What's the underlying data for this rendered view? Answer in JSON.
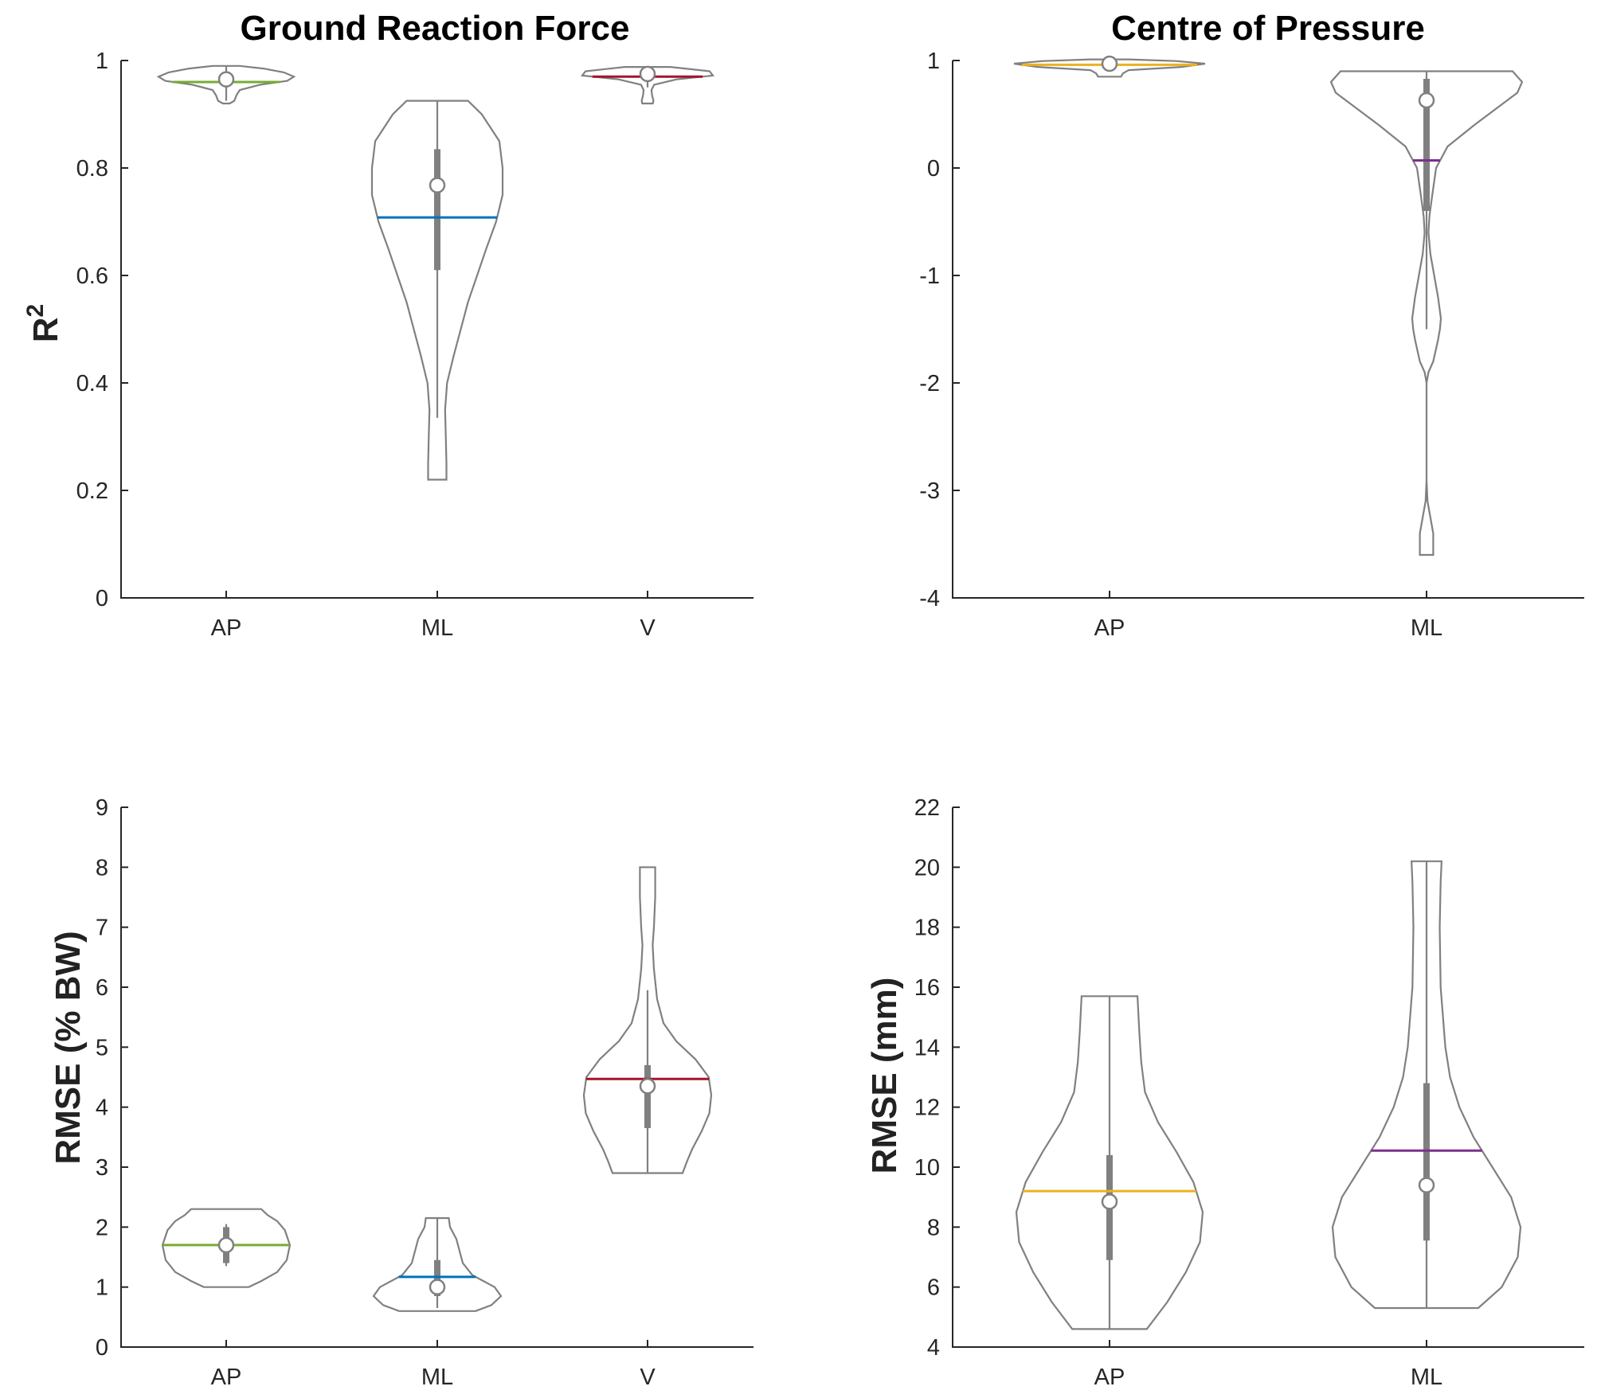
{
  "figure": {
    "colors": {
      "AP_grf": "#77AC30",
      "ML_grf": "#0072BD",
      "V_grf": "#A2142F",
      "AP_cop": "#EDB120",
      "ML_cop": "#7E2F8E",
      "violin_edge": "#808080"
    }
  },
  "chart_data": [
    {
      "id": "grf_r2",
      "type": "violin",
      "title": "Ground Reaction Force",
      "xlabel": "",
      "ylabel": "R",
      "ylabel_superscript": "2",
      "ylim": [
        0,
        1
      ],
      "yticks": [
        0,
        0.2,
        0.4,
        0.6,
        0.8,
        1
      ],
      "ytick_labels": [
        "0",
        "0.2",
        "0.4",
        "0.6",
        "0.8",
        "1"
      ],
      "categories": [
        "AP",
        "ML",
        "V"
      ],
      "series": [
        {
          "name": "AP",
          "color": "#77AC30",
          "mean": 0.96,
          "median": 0.965,
          "q1": 0.955,
          "q3": 0.975,
          "whisker_low": 0.925,
          "whisker_high": 0.99,
          "profile": [
            [
              0.92,
              0.05
            ],
            [
              0.925,
              0.12
            ],
            [
              0.935,
              0.15
            ],
            [
              0.945,
              0.2
            ],
            [
              0.955,
              0.5
            ],
            [
              0.962,
              0.9
            ],
            [
              0.97,
              1.0
            ],
            [
              0.978,
              0.85
            ],
            [
              0.985,
              0.55
            ],
            [
              0.99,
              0.2
            ]
          ]
        },
        {
          "name": "ML",
          "color": "#0072BD",
          "mean": 0.708,
          "median": 0.768,
          "q1": 0.61,
          "q3": 0.835,
          "whisker_low": 0.335,
          "whisker_high": 0.925,
          "profile": [
            [
              0.22,
              0.14
            ],
            [
              0.25,
              0.14
            ],
            [
              0.3,
              0.13
            ],
            [
              0.35,
              0.12
            ],
            [
              0.4,
              0.15
            ],
            [
              0.45,
              0.25
            ],
            [
              0.5,
              0.36
            ],
            [
              0.55,
              0.47
            ],
            [
              0.6,
              0.61
            ],
            [
              0.65,
              0.75
            ],
            [
              0.7,
              0.9
            ],
            [
              0.75,
              1.0
            ],
            [
              0.8,
              1.0
            ],
            [
              0.85,
              0.95
            ],
            [
              0.9,
              0.68
            ],
            [
              0.925,
              0.47
            ]
          ]
        },
        {
          "name": "V",
          "color": "#A2142F",
          "mean": 0.97,
          "median": 0.975,
          "q1": 0.97,
          "q3": 0.98,
          "whisker_low": 0.95,
          "whisker_high": 0.98,
          "profile": [
            [
              0.92,
              0.08
            ],
            [
              0.925,
              0.09
            ],
            [
              0.935,
              0.07
            ],
            [
              0.945,
              0.06
            ],
            [
              0.955,
              0.1
            ],
            [
              0.965,
              0.45
            ],
            [
              0.972,
              1.0
            ],
            [
              0.98,
              0.95
            ],
            [
              0.988,
              0.35
            ]
          ]
        }
      ]
    },
    {
      "id": "cop_r2",
      "type": "violin",
      "title": "Centre of Pressure",
      "xlabel": "",
      "ylabel": "",
      "ylim": [
        -4,
        1
      ],
      "yticks": [
        -4,
        -3,
        -2,
        -1,
        0,
        1
      ],
      "ytick_labels": [
        "-4",
        "-3",
        "-2",
        "-1",
        "0",
        "1"
      ],
      "categories": [
        "AP",
        "ML"
      ],
      "series": [
        {
          "name": "AP",
          "color": "#EDB120",
          "mean": 0.96,
          "median": 0.97,
          "q1": 0.95,
          "q3": 0.985,
          "whisker_low": 0.9,
          "whisker_high": 0.99,
          "profile": [
            [
              0.85,
              0.12
            ],
            [
              0.88,
              0.14
            ],
            [
              0.91,
              0.2
            ],
            [
              0.94,
              0.75
            ],
            [
              0.97,
              1.0
            ],
            [
              0.995,
              0.7
            ],
            [
              1.01,
              0.2
            ]
          ]
        },
        {
          "name": "ML",
          "color": "#7E2F8E",
          "mean": 0.07,
          "median": 0.63,
          "q1": -0.4,
          "q3": 0.83,
          "whisker_low": -1.5,
          "whisker_high": 0.9,
          "profile": [
            [
              -3.6,
              0.07
            ],
            [
              -3.5,
              0.07
            ],
            [
              -3.4,
              0.07
            ],
            [
              -3.3,
              0.05
            ],
            [
              -3.1,
              0.01
            ],
            [
              -2.9,
              0.0
            ],
            [
              -2.5,
              0.0
            ],
            [
              -2.0,
              0.0
            ],
            [
              -1.9,
              0.02
            ],
            [
              -1.8,
              0.07
            ],
            [
              -1.6,
              0.12
            ],
            [
              -1.5,
              0.14
            ],
            [
              -1.4,
              0.15
            ],
            [
              -1.2,
              0.12
            ],
            [
              -1.0,
              0.08
            ],
            [
              -0.8,
              0.04
            ],
            [
              -0.6,
              0.02
            ],
            [
              -0.45,
              0.03
            ],
            [
              -0.25,
              0.06
            ],
            [
              0.0,
              0.1
            ],
            [
              0.2,
              0.22
            ],
            [
              0.4,
              0.5
            ],
            [
              0.6,
              0.8
            ],
            [
              0.7,
              0.95
            ],
            [
              0.8,
              1.0
            ],
            [
              0.9,
              0.9
            ]
          ]
        }
      ]
    },
    {
      "id": "grf_rmse",
      "type": "violin",
      "title": "",
      "xlabel": "",
      "ylabel": "RMSE (% BW)",
      "ylim": [
        0,
        9
      ],
      "yticks": [
        0,
        1,
        2,
        3,
        4,
        5,
        6,
        7,
        8,
        9
      ],
      "ytick_labels": [
        "0",
        "1",
        "2",
        "3",
        "4",
        "5",
        "6",
        "7",
        "8",
        "9"
      ],
      "categories": [
        "AP",
        "ML",
        "V"
      ],
      "series": [
        {
          "name": "AP",
          "color": "#77AC30",
          "mean": 1.7,
          "median": 1.7,
          "q1": 1.4,
          "q3": 2.0,
          "whisker_low": 1.35,
          "whisker_high": 2.05,
          "profile": [
            [
              1.0,
              0.35
            ],
            [
              1.1,
              0.55
            ],
            [
              1.25,
              0.8
            ],
            [
              1.45,
              0.95
            ],
            [
              1.7,
              1.0
            ],
            [
              1.95,
              0.92
            ],
            [
              2.1,
              0.8
            ],
            [
              2.2,
              0.65
            ],
            [
              2.3,
              0.55
            ]
          ]
        },
        {
          "name": "ML",
          "color": "#0072BD",
          "mean": 1.17,
          "median": 1.0,
          "q1": 0.85,
          "q3": 1.45,
          "whisker_low": 0.65,
          "whisker_high": 2.15,
          "profile": [
            [
              0.6,
              0.6
            ],
            [
              0.7,
              0.85
            ],
            [
              0.85,
              1.0
            ],
            [
              1.0,
              0.9
            ],
            [
              1.2,
              0.55
            ],
            [
              1.4,
              0.4
            ],
            [
              1.6,
              0.35
            ],
            [
              1.8,
              0.3
            ],
            [
              2.0,
              0.2
            ],
            [
              2.15,
              0.18
            ]
          ]
        },
        {
          "name": "V",
          "color": "#A2142F",
          "mean": 4.47,
          "median": 4.35,
          "q1": 3.65,
          "q3": 4.7,
          "whisker_low": 2.9,
          "whisker_high": 5.95,
          "profile": [
            [
              2.9,
              0.55
            ],
            [
              3.1,
              0.62
            ],
            [
              3.3,
              0.7
            ],
            [
              3.6,
              0.85
            ],
            [
              3.9,
              0.97
            ],
            [
              4.2,
              1.0
            ],
            [
              4.5,
              0.96
            ],
            [
              4.8,
              0.75
            ],
            [
              5.1,
              0.45
            ],
            [
              5.4,
              0.25
            ],
            [
              5.8,
              0.15
            ],
            [
              6.3,
              0.1
            ],
            [
              6.7,
              0.08
            ],
            [
              7.0,
              0.1
            ],
            [
              7.5,
              0.12
            ],
            [
              8.0,
              0.12
            ]
          ]
        }
      ]
    },
    {
      "id": "cop_rmse",
      "type": "violin",
      "title": "",
      "xlabel": "",
      "ylabel": "RMSE (mm)",
      "ylim": [
        4,
        22
      ],
      "yticks": [
        4,
        6,
        8,
        10,
        12,
        14,
        16,
        18,
        20,
        22
      ],
      "ytick_labels": [
        "4",
        "6",
        "8",
        "10",
        "12",
        "14",
        "16",
        "18",
        "20",
        "22"
      ],
      "categories": [
        "AP",
        "ML"
      ],
      "series": [
        {
          "name": "AP",
          "color": "#EDB120",
          "mean": 9.2,
          "median": 8.85,
          "q1": 6.9,
          "q3": 10.4,
          "whisker_low": 4.6,
          "whisker_high": 15.7,
          "profile": [
            [
              4.6,
              0.4
            ],
            [
              5.5,
              0.62
            ],
            [
              6.5,
              0.82
            ],
            [
              7.5,
              0.97
            ],
            [
              8.5,
              1.0
            ],
            [
              9.5,
              0.9
            ],
            [
              10.5,
              0.72
            ],
            [
              11.5,
              0.52
            ],
            [
              12.5,
              0.38
            ],
            [
              13.5,
              0.34
            ],
            [
              14.5,
              0.32
            ],
            [
              15.7,
              0.3
            ]
          ]
        },
        {
          "name": "ML",
          "color": "#7E2F8E",
          "mean": 10.55,
          "median": 9.4,
          "q1": 7.55,
          "q3": 12.8,
          "whisker_low": 5.3,
          "whisker_high": 20.2,
          "profile": [
            [
              5.3,
              0.55
            ],
            [
              6.0,
              0.8
            ],
            [
              7.0,
              0.97
            ],
            [
              8.0,
              1.0
            ],
            [
              9.0,
              0.9
            ],
            [
              10.0,
              0.7
            ],
            [
              11.0,
              0.5
            ],
            [
              12.0,
              0.35
            ],
            [
              13.0,
              0.25
            ],
            [
              14.0,
              0.2
            ],
            [
              16.0,
              0.15
            ],
            [
              18.0,
              0.14
            ],
            [
              19.5,
              0.15
            ],
            [
              20.2,
              0.16
            ]
          ]
        }
      ]
    }
  ]
}
